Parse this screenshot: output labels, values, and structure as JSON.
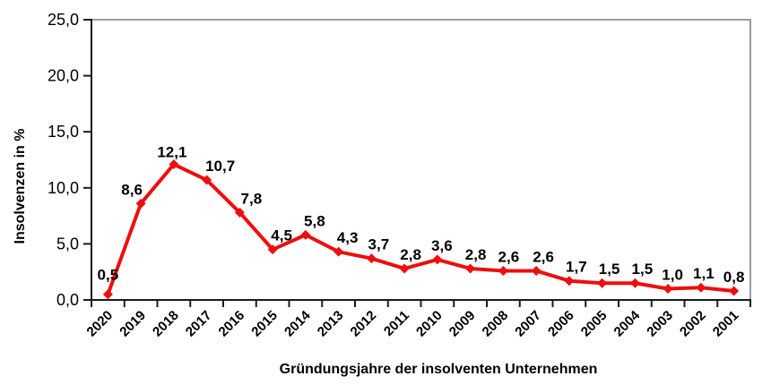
{
  "chart_data": {
    "type": "line",
    "title": "",
    "xlabel": "Gründungsjahre der insolventen Unternehmen",
    "ylabel": "Insolvenzen in %",
    "categories": [
      "2020",
      "2019",
      "2018",
      "2017",
      "2016",
      "2015",
      "2014",
      "2013",
      "2012",
      "2011",
      "2010",
      "2009",
      "2008",
      "2007",
      "2006",
      "2005",
      "2004",
      "2003",
      "2002",
      "2001"
    ],
    "values": [
      0.5,
      8.6,
      12.1,
      10.7,
      7.8,
      4.5,
      5.8,
      4.3,
      3.7,
      2.8,
      3.6,
      2.8,
      2.6,
      2.6,
      1.7,
      1.5,
      1.5,
      1.0,
      1.1,
      0.8
    ],
    "point_labels": [
      "0,5",
      "8,6",
      "12,1",
      "10,7",
      "7,8",
      "4,5",
      "5,8",
      "4,3",
      "3,7",
      "2,8",
      "3,6",
      "2,8",
      "2,6",
      "2,6",
      "1,7",
      "1,5",
      "1,5",
      "1,0",
      "1,1",
      "0,8"
    ],
    "ylim": [
      0,
      25
    ],
    "yticks": [
      0,
      5,
      10,
      15,
      20,
      25
    ],
    "ytick_labels": [
      "0,0",
      "5,0",
      "10,0",
      "15,0",
      "20,0",
      "25,0"
    ],
    "grid": false,
    "legend_position": "none",
    "line_color": "#ee0e0e",
    "marker": "diamond",
    "axis_color": "#1a1a1a",
    "plot_border_color": "#9c9c9c"
  }
}
